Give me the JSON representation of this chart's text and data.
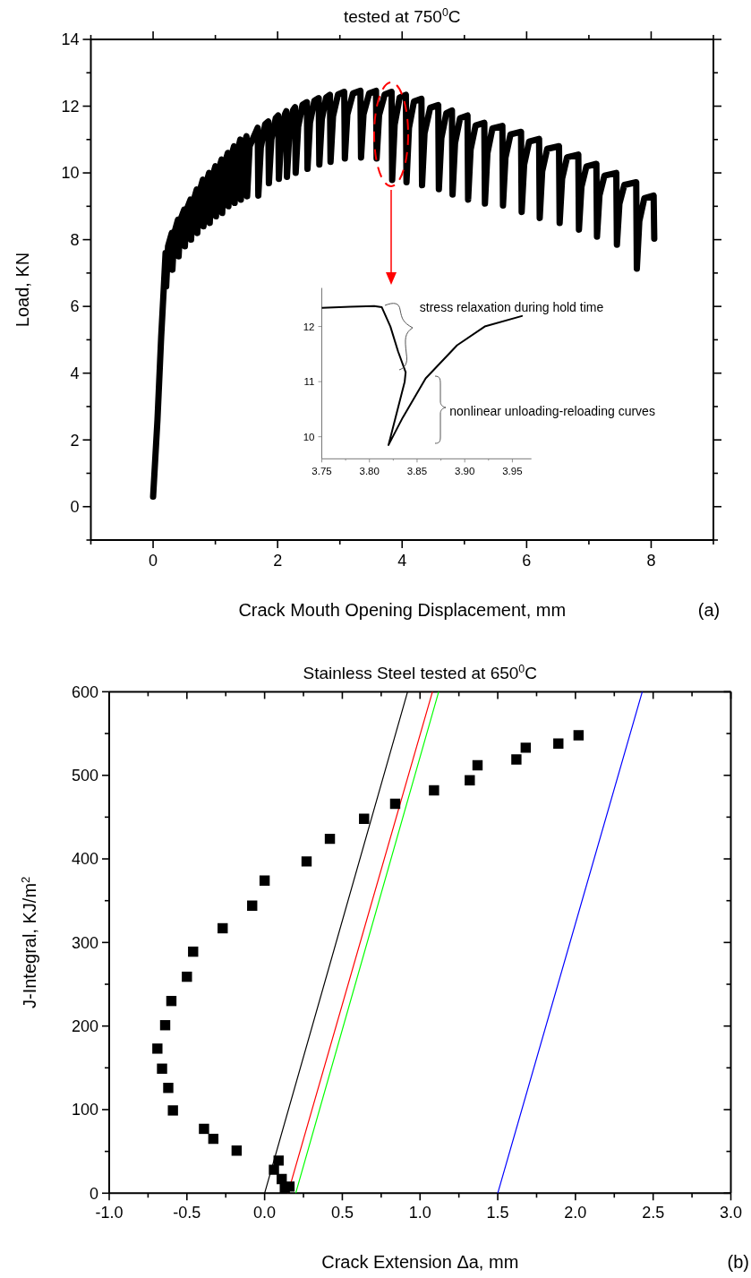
{
  "chart_data": [
    {
      "type": "line",
      "title": "tested at 750$^{0}$C",
      "xlabel": "Crack Mouth Opening Displacement, mm",
      "ylabel": "Load, KN",
      "annotations": [
        "(a)"
      ],
      "x": [
        0,
        0.07,
        0.13,
        0.17,
        0.2,
        0.21,
        0.24,
        0.3,
        0.31,
        0.34,
        0.4,
        0.41,
        0.44,
        0.5,
        0.51,
        0.54,
        0.6,
        0.61,
        0.64,
        0.7,
        0.71,
        0.74,
        0.8,
        0.81,
        0.84,
        0.9,
        0.91,
        0.94,
        1.0,
        1.01,
        1.04,
        1.1,
        1.11,
        1.14,
        1.2,
        1.21,
        1.24,
        1.3,
        1.31,
        1.34,
        1.4,
        1.41,
        1.44,
        1.5,
        1.51,
        1.55,
        1.68,
        1.69,
        1.73,
        1.8,
        1.85,
        1.86,
        1.9,
        1.97,
        2.01,
        2.02,
        2.06,
        2.12,
        2.14,
        2.15,
        2.19,
        2.25,
        2.28,
        2.29,
        2.33,
        2.4,
        2.47,
        2.48,
        2.52,
        2.59,
        2.66,
        2.67,
        2.71,
        2.78,
        2.84,
        2.85,
        2.89,
        2.97,
        3.07,
        3.08,
        3.12,
        3.21,
        3.33,
        3.34,
        3.38,
        3.47,
        3.58,
        3.59,
        3.63,
        3.72,
        3.83,
        3.84,
        3.88,
        3.96,
        4.06,
        4.07,
        4.11,
        4.19,
        4.31,
        4.32,
        4.36,
        4.45,
        4.58,
        4.59,
        4.63,
        4.71,
        4.8,
        4.81,
        4.85,
        4.93,
        5.05,
        5.06,
        5.1,
        5.18,
        5.32,
        5.33,
        5.37,
        5.45,
        5.61,
        5.62,
        5.66,
        5.74,
        5.91,
        5.92,
        5.96,
        6.04,
        6.2,
        6.21,
        6.25,
        6.33,
        6.52,
        6.53,
        6.57,
        6.65,
        6.83,
        6.84,
        6.88,
        6.96,
        7.12,
        7.13,
        7.17,
        7.25,
        7.44,
        7.45,
        7.49,
        7.57,
        7.76,
        7.77,
        7.81,
        7.89,
        8.04,
        8.05
      ],
      "series": [
        {
          "color": "#000000",
          "values": [
            0.3,
            2.6,
            5.1,
            6.5,
            7.6,
            6.6,
            7.8,
            8.2,
            7.1,
            8.2,
            8.6,
            7.5,
            8.6,
            8.9,
            7.8,
            8.9,
            9.2,
            8.0,
            9.1,
            9.5,
            8.2,
            9.4,
            9.8,
            8.4,
            9.6,
            10.0,
            8.5,
            9.8,
            10.2,
            8.7,
            10.0,
            10.4,
            8.8,
            10.2,
            10.6,
            9.0,
            10.4,
            10.8,
            9.1,
            10.5,
            11.0,
            9.2,
            10.7,
            11.1,
            9.3,
            10.8,
            11.35,
            9.32,
            10.76,
            11.46,
            11.54,
            9.69,
            11.01,
            11.64,
            11.72,
            9.82,
            11.14,
            11.77,
            11.85,
            9.88,
            11.24,
            11.89,
            11.97,
            10.0,
            11.38,
            12.04,
            12.12,
            10.12,
            11.5,
            12.16,
            12.24,
            10.25,
            11.61,
            12.26,
            12.34,
            10.33,
            11.7,
            12.35,
            12.43,
            10.43,
            11.75,
            12.38,
            12.46,
            10.46,
            11.76,
            12.38,
            12.46,
            10.43,
            11.73,
            12.35,
            12.43,
            9.79,
            11.45,
            12.26,
            12.34,
            9.72,
            11.35,
            12.14,
            12.22,
            9.63,
            11.19,
            11.95,
            12.03,
            9.51,
            11.04,
            11.79,
            11.87,
            9.35,
            10.89,
            11.64,
            11.72,
            9.2,
            10.7,
            11.42,
            11.5,
            9.08,
            10.59,
            11.33,
            11.41,
            9.02,
            10.46,
            11.15,
            11.23,
            8.83,
            10.25,
            10.94,
            11.02,
            8.65,
            10.05,
            10.72,
            10.8,
            8.5,
            9.83,
            10.47,
            10.55,
            8.3,
            9.58,
            10.19,
            10.27,
            8.09,
            9.33,
            9.92,
            10.0,
            7.85,
            9.07,
            9.64,
            9.72,
            7.13,
            8.55,
            9.24,
            9.32,
            8.03
          ]
        }
      ],
      "xlim": [
        -1,
        9
      ],
      "xticks": [
        {
          "value": -1,
          "label": null
        },
        0,
        {
          "value": 1,
          "label": null
        },
        2,
        {
          "value": 3,
          "label": null
        },
        4,
        {
          "value": 5,
          "label": null
        },
        6,
        {
          "value": 7,
          "label": null
        },
        8,
        {
          "value": 9,
          "label": null
        }
      ],
      "ylim": [
        -1,
        14
      ],
      "yticks": [
        {
          "value": -1,
          "label": null
        },
        0,
        {
          "value": 1,
          "label": null
        },
        2,
        {
          "value": 3,
          "label": null
        },
        4,
        {
          "value": 5,
          "label": null
        },
        6,
        {
          "value": 7,
          "label": null
        },
        8,
        {
          "value": 9,
          "label": null
        },
        10,
        {
          "value": 11,
          "label": null
        },
        12,
        {
          "value": 13,
          "label": null
        },
        14
      ]
    },
    {
      "type": "line",
      "annotations": [
        "stress relaxation during hold time",
        "nonlinear unloading-reloading curves"
      ],
      "x": [
        3.75,
        3.78,
        3.805,
        3.813,
        3.822,
        3.83,
        3.838,
        3.837,
        3.82,
        3.835,
        3.859,
        3.892,
        3.921,
        3.96
      ],
      "series": [
        {
          "color": "#000000",
          "values": [
            12.34,
            12.36,
            12.37,
            12.35,
            12.0,
            11.55,
            11.17,
            11.0,
            9.85,
            10.35,
            11.06,
            11.66,
            12.0,
            12.19
          ]
        }
      ],
      "xlim": [
        3.75,
        3.97
      ],
      "xticks": [
        {
          "value": 3.75,
          "label": "3.75"
        },
        {
          "value": 3.775,
          "label": null
        },
        {
          "value": 3.8,
          "label": "3.80"
        },
        {
          "value": 3.825,
          "label": null
        },
        {
          "value": 3.85,
          "label": "3.85"
        },
        {
          "value": 3.875,
          "label": null
        },
        {
          "value": 3.9,
          "label": "3.90"
        },
        {
          "value": 3.925,
          "label": null
        },
        {
          "value": 3.95,
          "label": "3.95"
        }
      ],
      "ylim": [
        9.6,
        12.7
      ],
      "yticks": [
        10,
        11,
        12
      ]
    },
    {
      "type": "scatter",
      "title": "Stainless Steel tested at 650$^{0}$C",
      "xlabel": "Crack Extension Δa, mm",
      "ylabel": "J-Integral, KJ/m$^{2}$",
      "annotations": [
        "(b)"
      ],
      "x": [
        2.02,
        1.89,
        1.68,
        1.62,
        1.37,
        1.32,
        1.09,
        0.84,
        0.64,
        0.42,
        0.27,
        0.0,
        -0.08,
        -0.27,
        -0.46,
        -0.5,
        -0.6,
        -0.64,
        -0.69,
        -0.66,
        -0.62,
        -0.59,
        -0.39,
        -0.33,
        -0.18,
        0.09,
        0.06,
        0.11,
        0.16,
        0.13
      ],
      "series": [
        {
          "color": "#000000",
          "marker": "square",
          "values": [
            548,
            538,
            533,
            519,
            512,
            494,
            482,
            466,
            448,
            424,
            397,
            374,
            344,
            317,
            289,
            259,
            230,
            201,
            173,
            149,
            126,
            99,
            77,
            65,
            51,
            39,
            28,
            17,
            8,
            5
          ]
        },
        {
          "type": "line",
          "color": "#000000",
          "x": [
            0,
            0.92
          ],
          "values": [
            0,
            600
          ]
        },
        {
          "type": "line",
          "color": "#ff0000",
          "x": [
            0.15,
            1.08
          ],
          "values": [
            0,
            600
          ]
        },
        {
          "type": "line",
          "color": "#00ff00",
          "x": [
            0.2,
            1.12
          ],
          "values": [
            0,
            600
          ]
        },
        {
          "type": "line",
          "color": "#0000ff",
          "x": [
            1.5,
            2.43
          ],
          "values": [
            0,
            600
          ]
        }
      ],
      "xlim": [
        -1,
        3
      ],
      "xticks": [
        {
          "value": -1,
          "label": "-1.0"
        },
        {
          "value": -0.75,
          "label": null
        },
        {
          "value": -0.5,
          "label": "-0.5"
        },
        {
          "value": -0.25,
          "label": null
        },
        {
          "value": 0,
          "label": "0.0"
        },
        {
          "value": 0.25,
          "label": null
        },
        {
          "value": 0.5,
          "label": "0.5"
        },
        {
          "value": 0.75,
          "label": null
        },
        {
          "value": 1,
          "label": "1.0"
        },
        {
          "value": 1.25,
          "label": null
        },
        {
          "value": 1.5,
          "label": "1.5"
        },
        {
          "value": 1.75,
          "label": null
        },
        {
          "value": 2,
          "label": "2.0"
        },
        {
          "value": 2.25,
          "label": null
        },
        {
          "value": 2.5,
          "label": "2.5"
        },
        {
          "value": 2.75,
          "label": null
        },
        {
          "value": 3,
          "label": "3.0"
        }
      ],
      "ylim": [
        0,
        600
      ],
      "yticks": [
        0,
        {
          "value": 50,
          "label": null
        },
        100,
        {
          "value": 150,
          "label": null
        },
        200,
        {
          "value": 250,
          "label": null
        },
        300,
        {
          "value": 350,
          "label": null
        },
        400,
        {
          "value": 450,
          "label": null
        },
        500,
        {
          "value": 550,
          "label": null
        },
        600
      ]
    }
  ]
}
